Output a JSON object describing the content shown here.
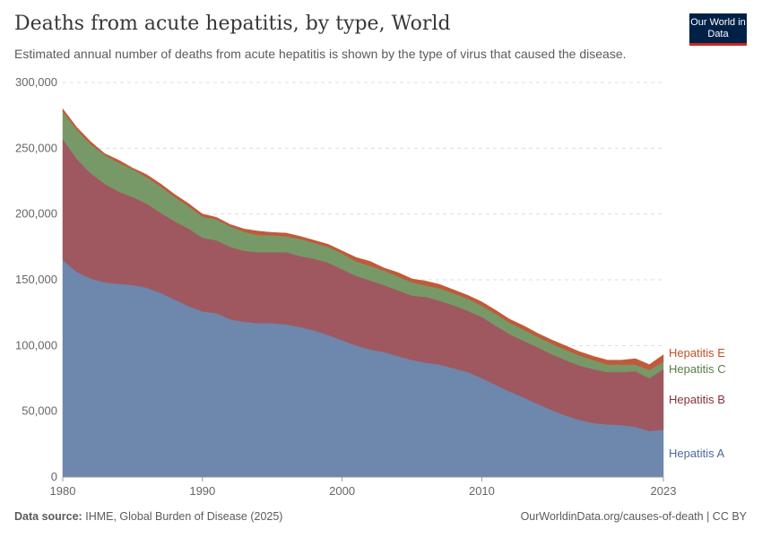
{
  "header": {
    "title": "Deaths from acute hepatitis, by type, World",
    "subtitle": "Estimated annual number of deaths from acute hepatitis is shown by the type of virus that caused the disease.",
    "logo": "Our World in Data"
  },
  "footer": {
    "source_label": "Data source:",
    "source": "IHME, Global Burden of Disease (2025)",
    "link": "OurWorldinData.org/causes-of-death | CC BY"
  },
  "chart_data": {
    "type": "area",
    "stacked": true,
    "title": "Deaths from acute hepatitis, by type, World",
    "xlabel": "",
    "ylabel": "",
    "ylim": [
      0,
      300000
    ],
    "xlim": [
      1980,
      2023
    ],
    "grid": "horizontal dashed",
    "legend": "right, inline labels",
    "yticks": [
      "0",
      "50,000",
      "100,000",
      "150,000",
      "200,000",
      "250,000",
      "300,000"
    ],
    "yticks_values": [
      0,
      50000,
      100000,
      150000,
      200000,
      250000,
      300000
    ],
    "xticks": [
      "1980",
      "1990",
      "2000",
      "2010",
      "2023"
    ],
    "x": [
      1980,
      1981,
      1982,
      1983,
      1984,
      1985,
      1986,
      1987,
      1988,
      1989,
      1990,
      1991,
      1992,
      1993,
      1994,
      1995,
      1996,
      1997,
      1998,
      1999,
      2000,
      2001,
      2002,
      2003,
      2004,
      2005,
      2006,
      2007,
      2008,
      2009,
      2010,
      2011,
      2012,
      2013,
      2014,
      2015,
      2016,
      2017,
      2018,
      2019,
      2020,
      2021,
      2022,
      2023
    ],
    "series": [
      {
        "name": "Hepatitis A",
        "color": "#6d87ad",
        "label_color": "#4c6a9c",
        "values": [
          165000,
          156000,
          151000,
          148000,
          147000,
          146000,
          144000,
          140000,
          135000,
          130000,
          126000,
          124500,
          120000,
          118000,
          117000,
          117000,
          116000,
          114000,
          111500,
          108000,
          104000,
          100000,
          97000,
          95000,
          92000,
          89000,
          87000,
          85500,
          82700,
          79800,
          75200,
          70000,
          65000,
          60500,
          55500,
          51000,
          46800,
          43400,
          41000,
          40000,
          39500,
          38200,
          35000,
          36000
        ]
      },
      {
        "name": "Hepatitis B",
        "color": "#9f5860",
        "label_color": "#883039",
        "values": [
          92000,
          86000,
          80000,
          75000,
          70000,
          67000,
          64000,
          61000,
          59500,
          59000,
          56000,
          55500,
          55000,
          54000,
          54000,
          54000,
          55000,
          54000,
          54500,
          55000,
          54000,
          53000,
          52500,
          51000,
          50000,
          49000,
          50000,
          48500,
          47800,
          46600,
          46600,
          45000,
          43600,
          43100,
          43200,
          42400,
          42100,
          41400,
          41000,
          39800,
          40300,
          42300,
          40200,
          46000
        ]
      },
      {
        "name": "Hepatitis C",
        "color": "#779967",
        "label_color": "#578145",
        "values": [
          21000,
          22000,
          22000,
          22000,
          22000,
          21000,
          20000,
          20000,
          18500,
          17000,
          16000,
          16000,
          15500,
          14500,
          13000,
          12800,
          12000,
          13000,
          12000,
          12000,
          12000,
          11000,
          11000,
          11000,
          10500,
          10000,
          8700,
          9400,
          9100,
          9100,
          8400,
          9000,
          8700,
          8400,
          7900,
          8000,
          7900,
          7500,
          6900,
          5700,
          5700,
          5000,
          6200,
          5700
        ]
      },
      {
        "name": "Hepatitis E",
        "color": "#c05a39",
        "label_color": "#c0502a",
        "values": [
          2000,
          2000,
          2000,
          1000,
          2000,
          1000,
          2000,
          2000,
          2000,
          2000,
          2000,
          1500,
          1500,
          2100,
          3000,
          2200,
          2500,
          2000,
          2000,
          2000,
          2000,
          3000,
          3500,
          2000,
          3000,
          2700,
          3300,
          3000,
          2700,
          2700,
          3000,
          2800,
          2700,
          3000,
          2700,
          2900,
          3000,
          3000,
          2900,
          3400,
          3400,
          4500,
          4100,
          5300
        ]
      }
    ]
  }
}
